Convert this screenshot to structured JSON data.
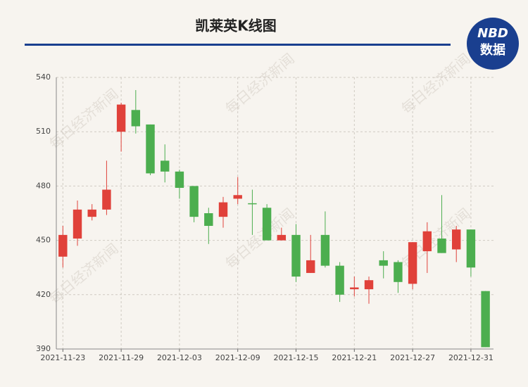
{
  "chart_data": {
    "type": "candlestick",
    "title": "凯莱英K线图",
    "logo": {
      "top": "NBD",
      "bottom": "数据"
    },
    "watermark": "每日经济新闻",
    "categories": [
      "2021-11-23",
      null,
      null,
      null,
      "2021-11-29",
      null,
      null,
      null,
      "2021-12-03",
      null,
      null,
      null,
      "2021-12-09",
      null,
      null,
      null,
      "2021-12-15",
      null,
      null,
      null,
      "2021-12-21",
      null,
      null,
      null,
      "2021-12-27",
      null,
      null,
      null,
      "2021-12-31",
      null
    ],
    "open": [
      441,
      451,
      463,
      467,
      510,
      522,
      514,
      494,
      488,
      480,
      465,
      463,
      473,
      470.5,
      468,
      450,
      453,
      432,
      453,
      436,
      423,
      423,
      439,
      438,
      426,
      444,
      451,
      445,
      456,
      422
    ],
    "close": [
      453,
      467,
      467,
      478,
      525,
      513,
      487,
      488,
      479,
      463,
      458,
      471,
      475,
      470,
      450,
      453,
      430,
      439,
      436,
      420,
      424,
      428,
      436,
      427,
      449,
      455,
      443,
      456,
      435,
      391
    ],
    "high": [
      458,
      472,
      470,
      494,
      526,
      533,
      514,
      503,
      489,
      480,
      468,
      474,
      485,
      478,
      470,
      457,
      459,
      453,
      466,
      438,
      430,
      430,
      444,
      439,
      449,
      460,
      475,
      458,
      456,
      422
    ],
    "low": [
      435,
      447,
      461,
      464,
      499,
      509,
      486,
      482,
      473,
      460,
      448,
      457,
      470,
      453,
      450,
      450,
      427,
      432,
      435,
      416,
      419,
      415,
      429,
      421,
      423,
      432,
      443,
      438,
      430,
      391
    ],
    "up_color": "#e0413a",
    "down_color": "#4cae4f",
    "ylim": [
      390,
      540
    ],
    "yticks": [
      390,
      420,
      450,
      480,
      510,
      540
    ],
    "grid": true
  }
}
